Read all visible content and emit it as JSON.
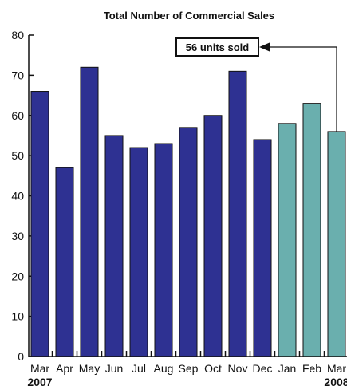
{
  "chart_data": {
    "type": "bar",
    "title": "Total Number of Commercial Sales",
    "categories": [
      "Mar",
      "Apr",
      "May",
      "Jun",
      "Jul",
      "Aug",
      "Sep",
      "Oct",
      "Nov",
      "Dec",
      "Jan",
      "Feb",
      "Mar"
    ],
    "values": [
      66,
      47,
      72,
      55,
      52,
      53,
      57,
      60,
      71,
      54,
      58,
      63,
      56
    ],
    "year_labels": [
      {
        "text": "2007",
        "category_index": 0
      },
      {
        "text": "2008",
        "category_index": 12
      }
    ],
    "ylim": [
      0,
      80
    ],
    "yticks": [
      0,
      10,
      20,
      30,
      40,
      50,
      60,
      70,
      80
    ],
    "xlabel": "",
    "ylabel": "",
    "grid": false,
    "colors": {
      "group_2007": "#2e3192",
      "group_2008": "#6aafae"
    },
    "bar_groups": [
      "2007",
      "2007",
      "2007",
      "2007",
      "2007",
      "2007",
      "2007",
      "2007",
      "2007",
      "2007",
      "2008",
      "2008",
      "2008"
    ],
    "annotation": {
      "text": "56 units sold",
      "category_index": 12
    }
  }
}
